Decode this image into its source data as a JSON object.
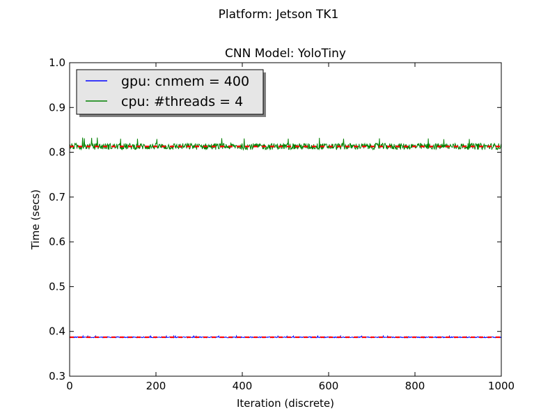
{
  "figure": {
    "suptitle": "Platform: Jetson TK1"
  },
  "chart_data": {
    "type": "line",
    "title": "CNN Model: YoloTiny",
    "xlabel": "Iteration (discrete)",
    "ylabel": "Time (secs)",
    "xlim": [
      0,
      1000
    ],
    "ylim": [
      0.3,
      1.0
    ],
    "x_ticks": [
      0,
      200,
      400,
      600,
      800,
      1000
    ],
    "y_ticks": [
      0.3,
      0.4,
      0.5,
      0.6,
      0.7,
      0.8,
      0.9,
      1.0
    ],
    "x_tick_labels": [
      "0",
      "200",
      "400",
      "600",
      "800",
      "1000"
    ],
    "y_tick_labels": [
      "0.3",
      "0.4",
      "0.5",
      "0.6",
      "0.7",
      "0.8",
      "0.9",
      "1.0"
    ],
    "grid": false,
    "legend_position": "top-left",
    "series": [
      {
        "name": "gpu: cnmem = 400",
        "color": "#0000ff",
        "mean": 0.387,
        "min": 0.385,
        "max": 0.39,
        "n": 1000
      },
      {
        "name": "cpu: #threads = 4",
        "color": "#008000",
        "mean": 0.813,
        "min": 0.8,
        "max": 0.833,
        "n": 1000
      }
    ],
    "mean_lines": [
      {
        "y": 0.387,
        "color": "#ff0000",
        "style": "dashed"
      },
      {
        "y": 0.813,
        "color": "#ff0000",
        "style": "dashed"
      }
    ]
  }
}
